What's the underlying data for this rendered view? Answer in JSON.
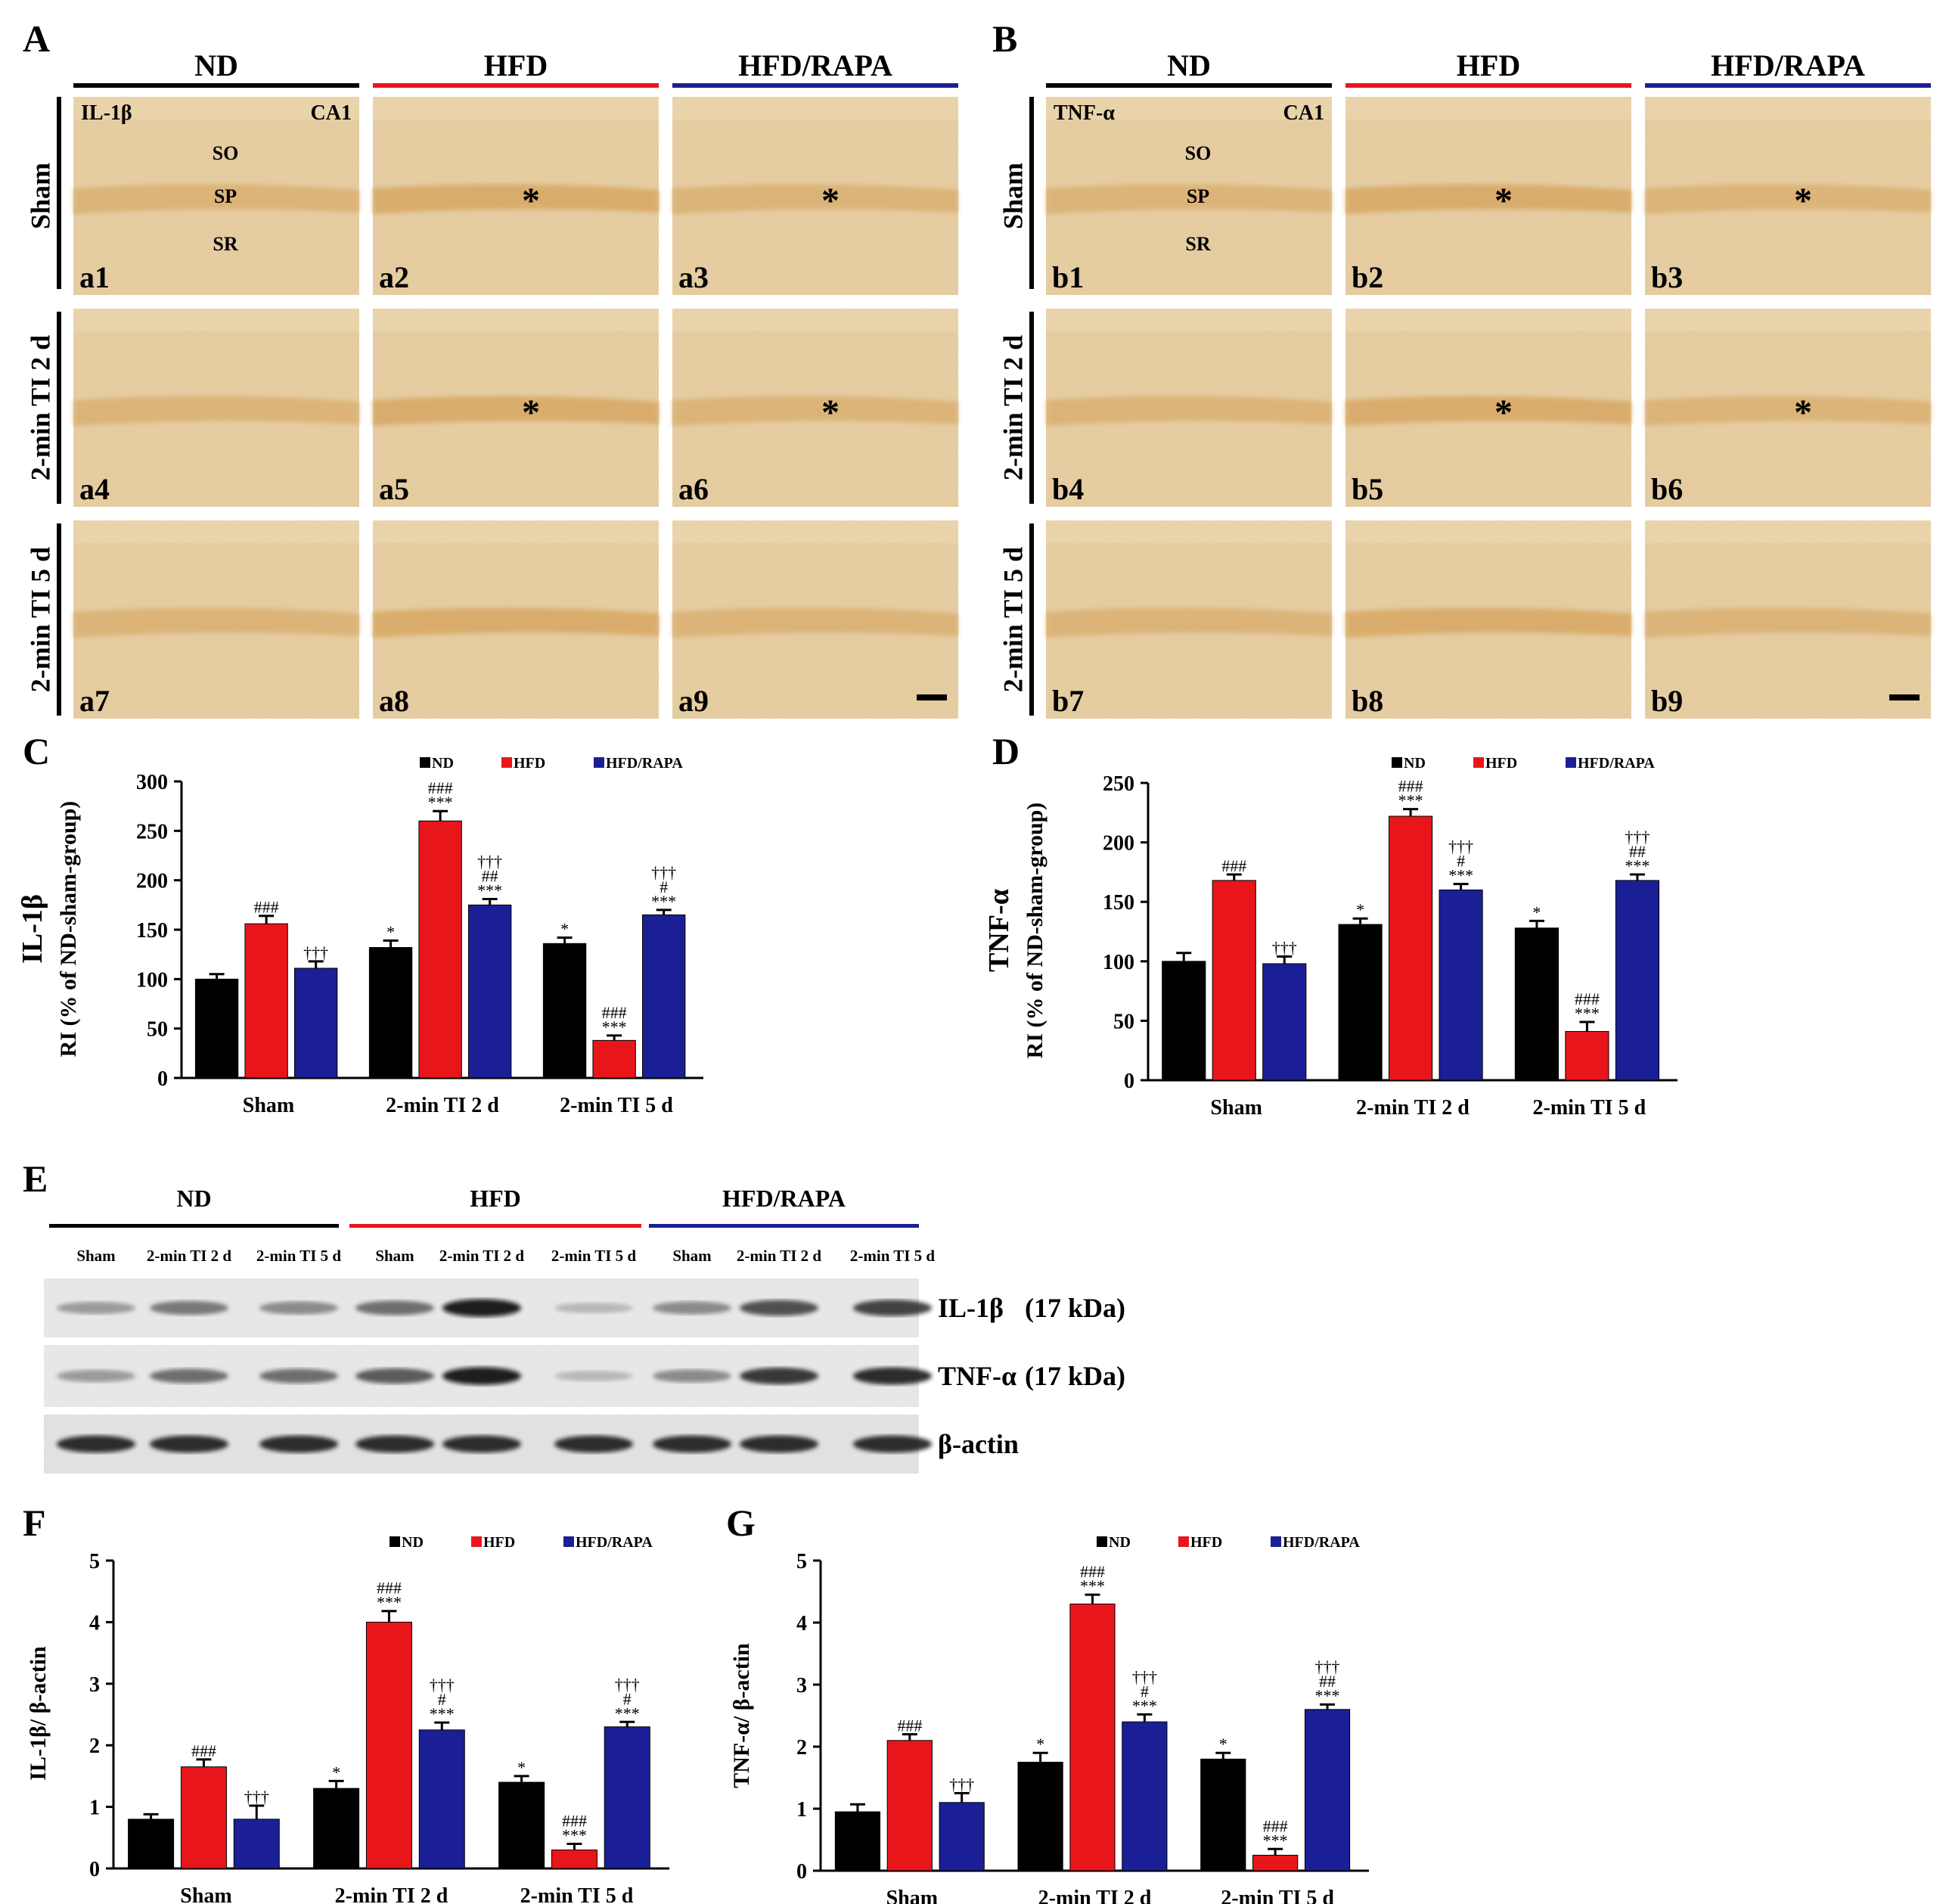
{
  "groups": [
    "ND",
    "HFD",
    "HFD/RAPA"
  ],
  "colors": {
    "ND": "#000000",
    "HFD": "#e8161b",
    "HFD/RAPA": "#1b1f95",
    "tissue": "#e8cfa3",
    "layer": "#d9a760"
  },
  "panel_A": {
    "letter": "A",
    "stain": "IL-1β",
    "region": "CA1",
    "layers": [
      "SO",
      "SP",
      "SR"
    ],
    "rows": [
      "Sham",
      "2-min TI 2 d",
      "2-min TI 5 d"
    ],
    "tiles": [
      "a1",
      "a2",
      "a3",
      "a4",
      "a5",
      "a6",
      "a7",
      "a8",
      "a9"
    ],
    "asterisk": "*"
  },
  "panel_B": {
    "letter": "B",
    "stain": "TNF-α",
    "region": "CA1",
    "layers": [
      "SO",
      "SP",
      "SR"
    ],
    "rows": [
      "Sham",
      "2-min TI 2 d",
      "2-min TI 5 d"
    ],
    "tiles": [
      "b1",
      "b2",
      "b3",
      "b4",
      "b5",
      "b6",
      "b7",
      "b8",
      "b9"
    ],
    "asterisk": "*"
  },
  "panel_E": {
    "letter": "E",
    "lanes": [
      "Sham",
      "2-min TI 2 d",
      "2-min TI 5 d",
      "Sham",
      "2-min TI 2 d",
      "2-min TI 5 d",
      "Sham",
      "2-min TI 2 d",
      "2-min TI 5 d"
    ],
    "blots": [
      {
        "name": "IL-1β",
        "size": "(17 kDa)",
        "intensity": [
          0.35,
          0.55,
          0.45,
          0.6,
          0.95,
          0.15,
          0.45,
          0.75,
          0.8
        ]
      },
      {
        "name": "TNF-α",
        "size": "(17 kDa)",
        "intensity": [
          0.35,
          0.6,
          0.6,
          0.7,
          0.95,
          0.15,
          0.45,
          0.85,
          0.9
        ]
      },
      {
        "name": "β-actin",
        "size": "",
        "intensity": [
          0.9,
          0.9,
          0.9,
          0.9,
          0.9,
          0.9,
          0.9,
          0.9,
          0.9
        ]
      }
    ]
  },
  "chart_data": [
    {
      "panel": "C",
      "type": "bar",
      "ylabel": "RI (% of ND-sham-group)",
      "ylabel_top": "IL-1β",
      "categories": [
        "Sham",
        "2-min TI 2 d",
        "2-min TI 5 d"
      ],
      "ylim": [
        0,
        300
      ],
      "ticks": [
        0,
        50,
        100,
        150,
        200,
        250,
        300
      ],
      "series": [
        {
          "name": "ND",
          "values": [
            100,
            132,
            136
          ],
          "errors": [
            5,
            7,
            6
          ],
          "annotations": [
            "",
            "*",
            "*"
          ]
        },
        {
          "name": "HFD",
          "values": [
            156,
            260,
            38
          ],
          "errors": [
            8,
            10,
            5
          ],
          "annotations": [
            "###",
            "###\n***",
            "###\n***"
          ]
        },
        {
          "name": "HFD/RAPA",
          "values": [
            111,
            175,
            165
          ],
          "errors": [
            7,
            6,
            5
          ],
          "annotations": [
            "†††",
            "†††\n##\n***",
            "†††\n#\n***"
          ]
        }
      ]
    },
    {
      "panel": "D",
      "type": "bar",
      "ylabel": "RI (% of ND-sham-group)",
      "ylabel_top": "TNF-α",
      "categories": [
        "Sham",
        "2-min TI 2 d",
        "2-min TI 5 d"
      ],
      "ylim": [
        0,
        250
      ],
      "ticks": [
        0,
        50,
        100,
        150,
        200,
        250
      ],
      "series": [
        {
          "name": "ND",
          "values": [
            100,
            131,
            128
          ],
          "errors": [
            7,
            5,
            6
          ],
          "annotations": [
            "",
            "*",
            "*"
          ]
        },
        {
          "name": "HFD",
          "values": [
            168,
            222,
            41
          ],
          "errors": [
            5,
            6,
            8
          ],
          "annotations": [
            "###",
            "###\n***",
            "###\n***"
          ]
        },
        {
          "name": "HFD/RAPA",
          "values": [
            98,
            160,
            168
          ],
          "errors": [
            6,
            5,
            5
          ],
          "annotations": [
            "†††",
            "†††\n#\n***",
            "†††\n##\n***"
          ]
        }
      ]
    },
    {
      "panel": "F",
      "type": "bar",
      "ylabel": "IL-1β/ β-actin",
      "categories": [
        "Sham",
        "2-min TI 2 d",
        "2-min TI 5 d"
      ],
      "ylim": [
        0,
        5
      ],
      "ticks": [
        0,
        1,
        2,
        3,
        4,
        5
      ],
      "series": [
        {
          "name": "ND",
          "values": [
            0.8,
            1.3,
            1.4
          ],
          "errors": [
            0.08,
            0.12,
            0.1
          ],
          "annotations": [
            "",
            "*",
            "*"
          ]
        },
        {
          "name": "HFD",
          "values": [
            1.65,
            4.0,
            0.3
          ],
          "errors": [
            0.12,
            0.18,
            0.1
          ],
          "annotations": [
            "###",
            "###\n***",
            "###\n***"
          ]
        },
        {
          "name": "HFD/RAPA",
          "values": [
            0.8,
            2.25,
            2.3
          ],
          "errors": [
            0.22,
            0.12,
            0.08
          ],
          "annotations": [
            "†††",
            "†††\n#\n***",
            "†††\n#\n***"
          ]
        }
      ]
    },
    {
      "panel": "G",
      "type": "bar",
      "ylabel": "TNF-α/ β-actin",
      "categories": [
        "Sham",
        "2-min TI 2 d",
        "2-min TI 5 d"
      ],
      "ylim": [
        0,
        5
      ],
      "ticks": [
        0,
        1,
        2,
        3,
        4,
        5
      ],
      "series": [
        {
          "name": "ND",
          "values": [
            0.95,
            1.75,
            1.8
          ],
          "errors": [
            0.12,
            0.15,
            0.1
          ],
          "annotations": [
            "",
            "*",
            "*"
          ]
        },
        {
          "name": "HFD",
          "values": [
            2.1,
            4.3,
            0.25
          ],
          "errors": [
            0.1,
            0.15,
            0.1
          ],
          "annotations": [
            "###",
            "###\n***",
            "###\n***"
          ]
        },
        {
          "name": "HFD/RAPA",
          "values": [
            1.1,
            2.4,
            2.6
          ],
          "errors": [
            0.15,
            0.12,
            0.08
          ],
          "annotations": [
            "†††",
            "†††\n#\n***",
            "†††\n##\n***"
          ]
        }
      ]
    }
  ]
}
